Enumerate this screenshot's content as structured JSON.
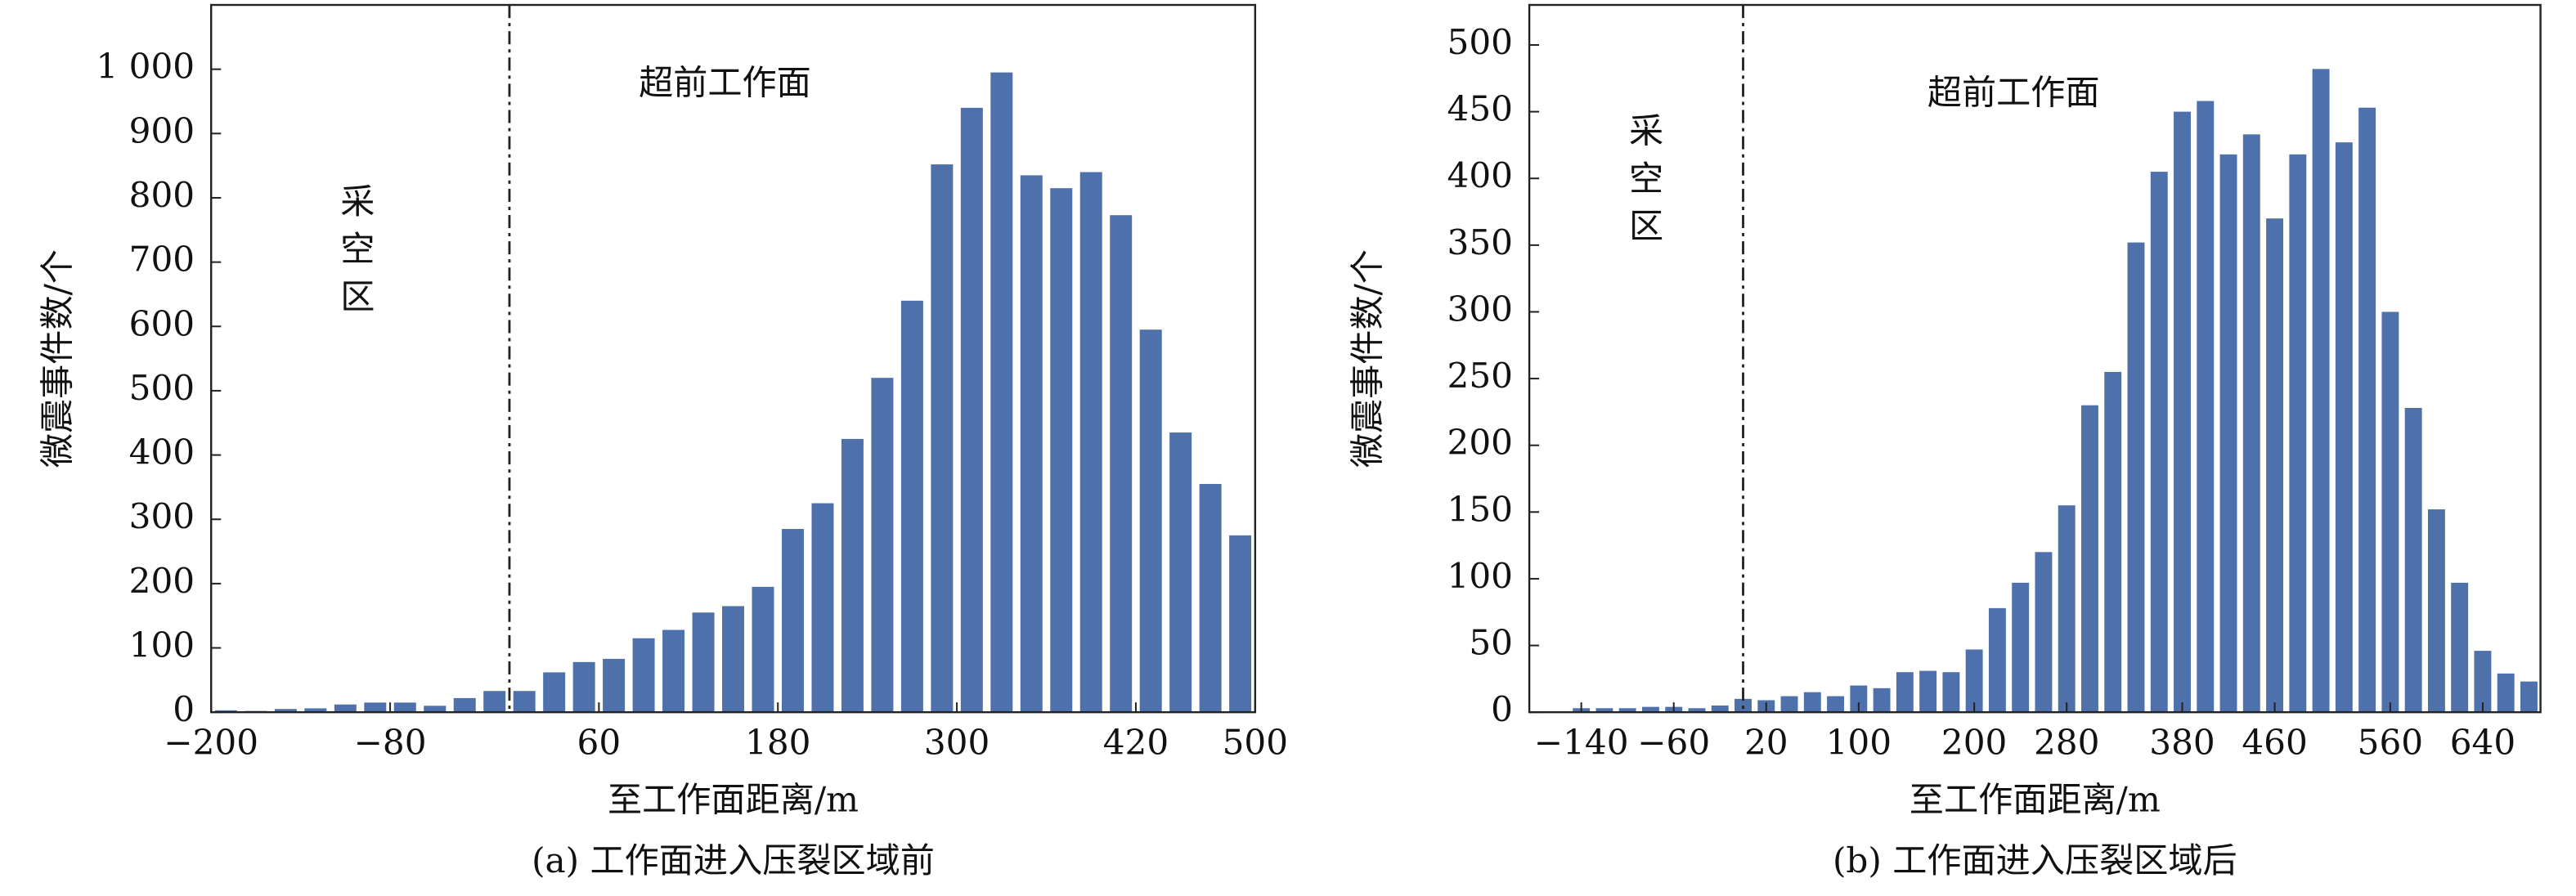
{
  "chart_data": [
    {
      "type": "histogram",
      "caption": "(a) 工作面进入压裂区域前",
      "xlabel": "至工作面距离/m",
      "ylabel": "微震事件数/个",
      "annotations": [
        "超前工作面",
        "采空区"
      ],
      "divider_x": 0,
      "color": "#4f71ab",
      "bins": [
        -200,
        -180,
        -160,
        -140,
        -120,
        -100,
        -80,
        -60,
        -40,
        -20,
        0,
        20,
        40,
        60,
        80,
        100,
        120,
        140,
        160,
        180,
        200,
        220,
        240,
        260,
        280,
        300,
        320,
        340,
        360,
        380,
        400,
        420,
        440,
        460,
        480,
        500
      ],
      "counts": [
        3,
        2,
        5,
        6,
        12,
        15,
        15,
        10,
        22,
        33,
        33,
        62,
        78,
        83,
        115,
        128,
        155,
        165,
        195,
        285,
        325,
        425,
        520,
        640,
        852,
        940,
        995,
        835,
        815,
        840,
        773,
        595,
        435,
        355,
        275
      ],
      "xlim": [
        -200,
        500
      ],
      "xticks": [
        {
          "value": -200,
          "label": "−200"
        },
        {
          "value": -80,
          "label": "−80"
        },
        60,
        180,
        300,
        420,
        500
      ],
      "ylim": [
        0,
        1100
      ],
      "yticks": [
        0,
        100,
        200,
        300,
        400,
        500,
        600,
        700,
        800,
        900,
        {
          "value": 1000,
          "label": "1 000"
        }
      ]
    },
    {
      "type": "histogram",
      "caption": "(b) 工作面进入压裂区域后",
      "xlabel": "至工作面距离/m",
      "ylabel": "微震事件数/个",
      "annotations": [
        "超前工作面",
        "采空区"
      ],
      "divider_x": 0,
      "color": "#4f71ab",
      "bins": [
        -150,
        -130,
        -110,
        -90,
        -70,
        -50,
        -30,
        -10,
        10,
        30,
        50,
        70,
        90,
        110,
        130,
        150,
        170,
        190,
        210,
        230,
        250,
        270,
        290,
        310,
        330,
        350,
        370,
        390,
        410,
        430,
        450,
        470,
        490,
        510,
        530,
        550,
        570,
        590,
        610,
        630,
        650,
        670,
        690
      ],
      "counts": [
        3,
        3,
        3,
        4,
        4,
        3,
        5,
        10,
        9,
        12,
        15,
        12,
        20,
        18,
        30,
        31,
        30,
        47,
        78,
        97,
        120,
        155,
        230,
        255,
        352,
        405,
        450,
        458,
        418,
        433,
        370,
        418,
        482,
        427,
        453,
        300,
        228,
        152,
        97,
        46,
        29,
        23
      ],
      "xlim": [
        -185,
        690
      ],
      "xticks": [
        {
          "value": -140,
          "label": "−140"
        },
        {
          "value": -60,
          "label": "−60"
        },
        20,
        100,
        200,
        280,
        380,
        460,
        560,
        640
      ],
      "ylim": [
        0,
        530
      ],
      "yticks": [
        0,
        50,
        100,
        150,
        200,
        250,
        300,
        350,
        400,
        450,
        500
      ]
    }
  ]
}
